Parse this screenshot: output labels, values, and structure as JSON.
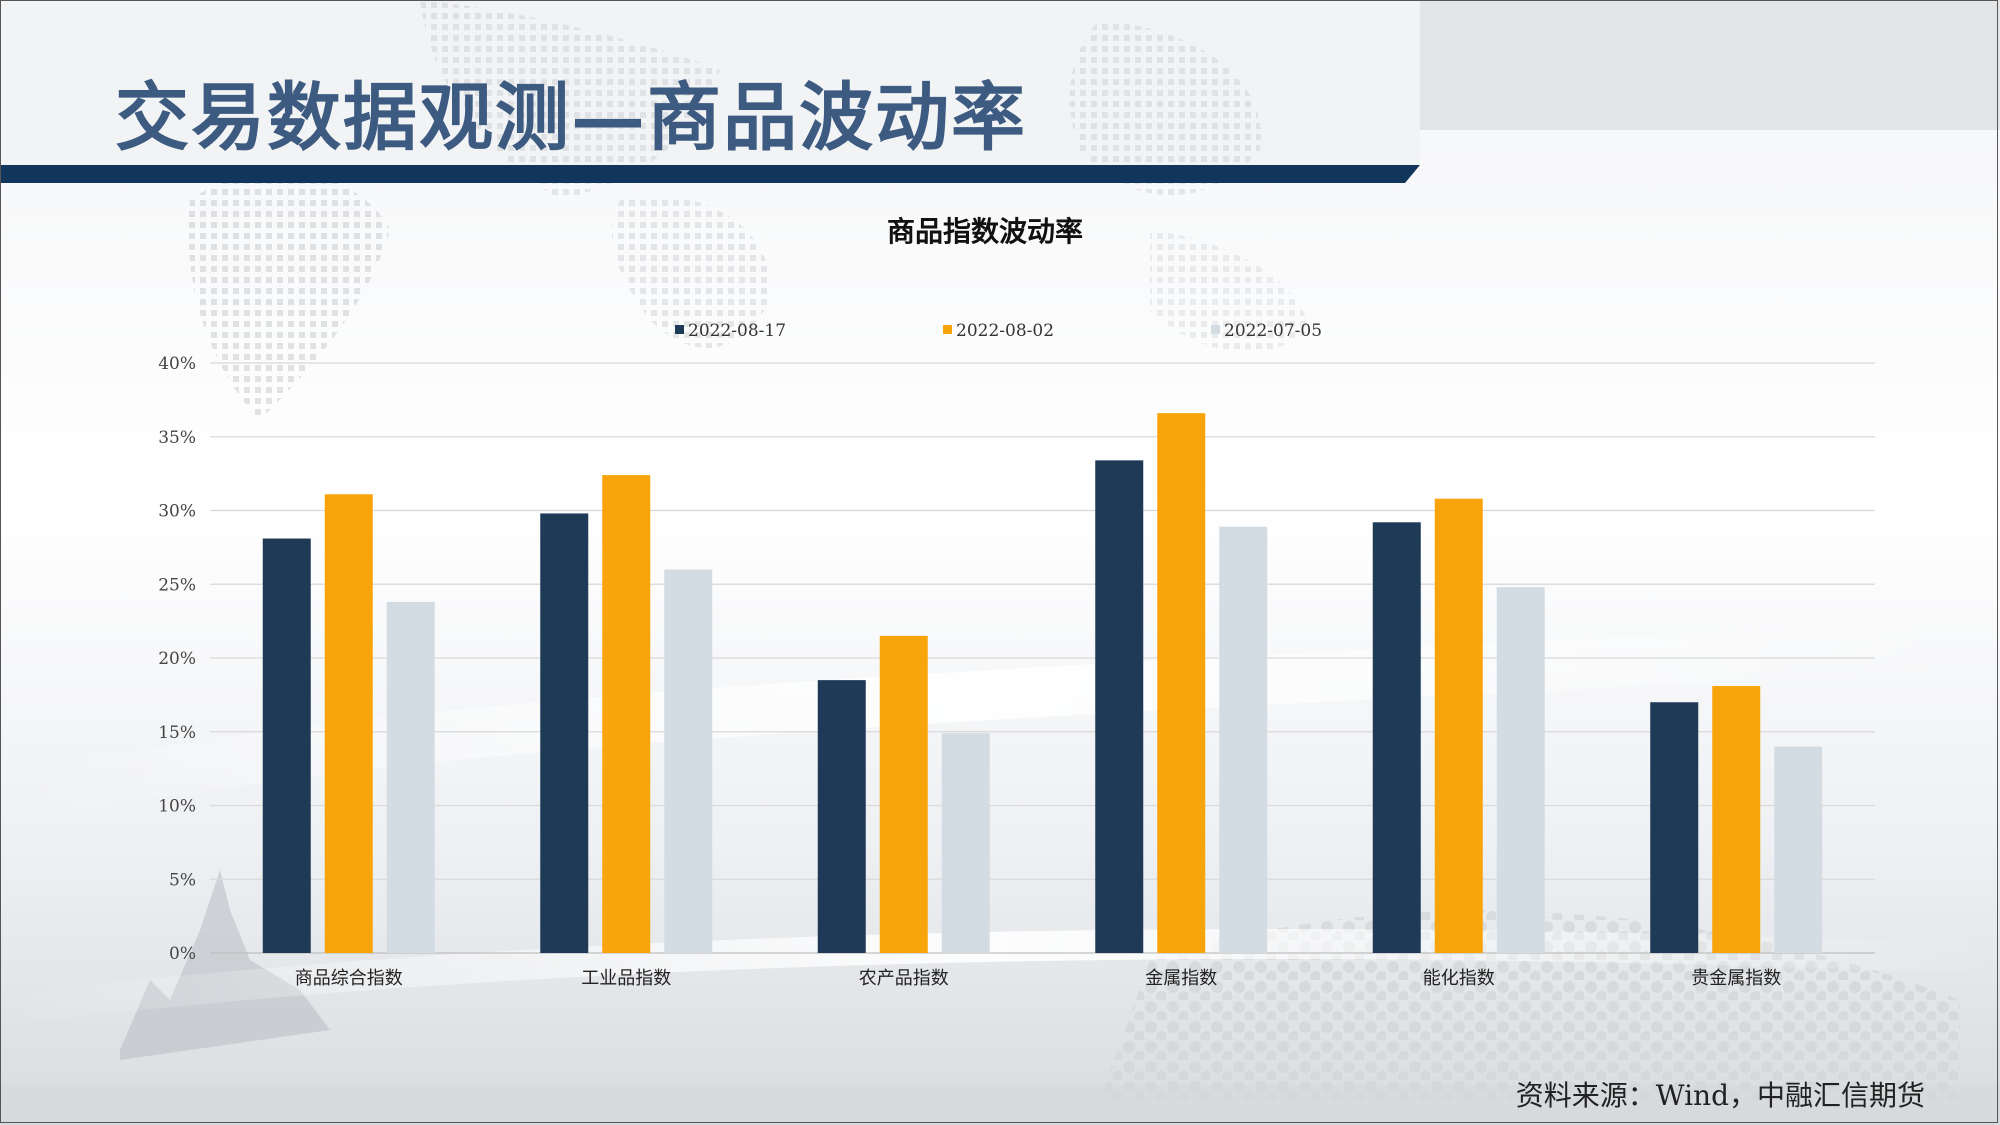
{
  "page_title": "交易数据观测—商品波动率",
  "source_note": "资料来源：Wind，中融汇信期货",
  "colors": {
    "title_text": "#3d5a80",
    "title_bar": "#12355b"
  },
  "chart_data": {
    "type": "bar",
    "title": "商品指数波动率",
    "categories": [
      "商品综合指数",
      "工业品指数",
      "农产品指数",
      "金属指数",
      "能化指数",
      "贵金属指数"
    ],
    "series": [
      {
        "name": "2022-08-17",
        "color": "#1f3a56",
        "values": [
          28.1,
          29.8,
          18.5,
          33.4,
          29.2,
          17.0
        ]
      },
      {
        "name": "2022-08-02",
        "color": "#f9a40a",
        "values": [
          31.1,
          32.4,
          21.5,
          36.6,
          30.8,
          18.1
        ]
      },
      {
        "name": "2022-07-05",
        "color": "#d3dce3",
        "values": [
          23.8,
          26.0,
          14.9,
          28.9,
          24.8,
          14.0
        ]
      }
    ],
    "ylim": [
      0,
      40
    ],
    "yticks": [
      "0%",
      "5%",
      "10%",
      "15%",
      "20%",
      "25%",
      "30%",
      "35%",
      "40%"
    ],
    "grid": true,
    "legend_position": "top"
  }
}
